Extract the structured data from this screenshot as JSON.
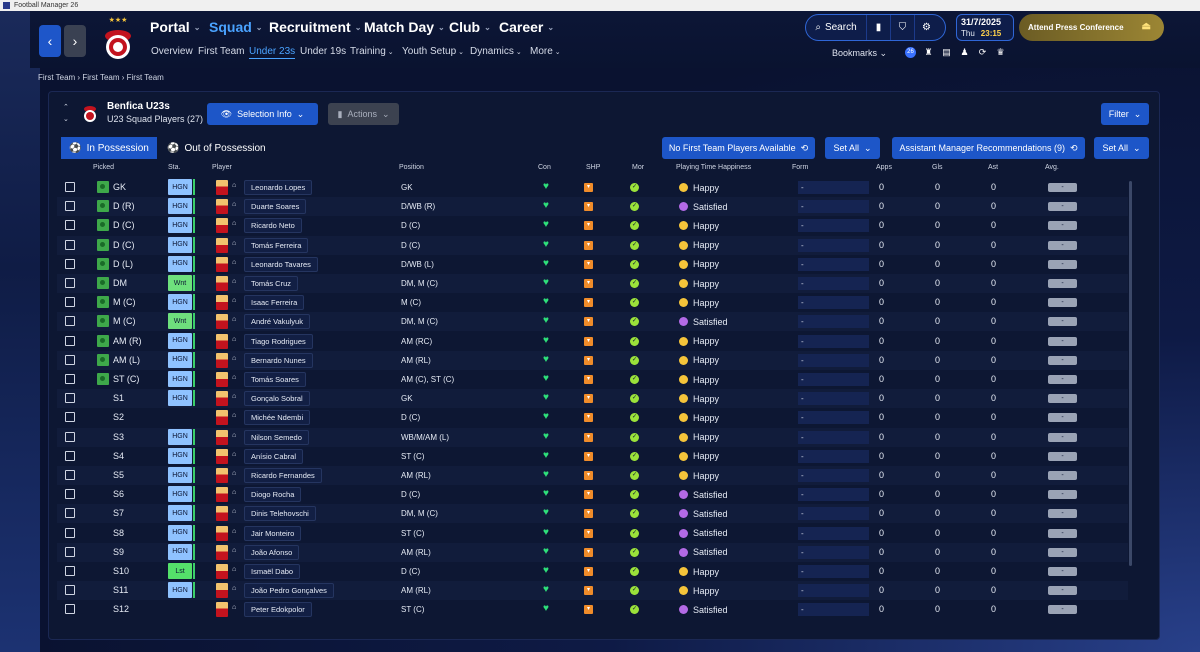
{
  "window": {
    "title": "Football Manager 26"
  },
  "nav": {
    "main": [
      {
        "label": "Portal"
      },
      {
        "label": "Squad"
      },
      {
        "label": "Recruitment"
      },
      {
        "label": "Match Day"
      },
      {
        "label": "Club"
      },
      {
        "label": "Career"
      }
    ],
    "sub": [
      {
        "label": "Overview"
      },
      {
        "label": "First Team"
      },
      {
        "label": "Under 23s"
      },
      {
        "label": "Under 19s"
      },
      {
        "label": "Training"
      },
      {
        "label": "Youth Setup"
      },
      {
        "label": "Dynamics"
      },
      {
        "label": "More"
      }
    ],
    "search_label": "Search",
    "date": "31/7/2025",
    "day": "Thu",
    "time": "23:15",
    "press_label": "Attend Press Conference",
    "bookmarks_label": "Bookmarks",
    "badge": "26"
  },
  "breadcrumb": [
    "First Team",
    "First Team",
    "First Team"
  ],
  "panel": {
    "team": "Benfica U23s",
    "subtitle": "U23 Squad Players (27)",
    "selection_info": "Selection Info",
    "actions": "Actions",
    "filter": "Filter",
    "tab_in": "In Possession",
    "tab_out": "Out of Possession",
    "no_first_team": "No First Team Players Available",
    "set_all": "Set All",
    "assistant": "Assistant Manager Recommendations (9)"
  },
  "columns": {
    "picked": "Picked",
    "sta": "Sta.",
    "player": "Player",
    "position": "Position",
    "con": "Con",
    "shp": "SHP",
    "mor": "Mor",
    "pth": "Playing Time Happiness",
    "form": "Form",
    "apps": "Apps",
    "gls": "Gls",
    "ast": "Ast",
    "avg": "Avg."
  },
  "rows": [
    {
      "picked": "GK",
      "sta": "HGN",
      "name": "Leonardo Lopes",
      "pos": "GK",
      "hap": "Happy",
      "form": "-",
      "apps": "0",
      "gls": "0",
      "ast": "0",
      "avg": "-"
    },
    {
      "picked": "D (R)",
      "sta": "HGN",
      "name": "Duarte Soares",
      "pos": "D/WB (R)",
      "hap": "Satisfied",
      "form": "-",
      "apps": "0",
      "gls": "0",
      "ast": "0",
      "avg": "-"
    },
    {
      "picked": "D (C)",
      "sta": "HGN",
      "name": "Ricardo Neto",
      "pos": "D (C)",
      "hap": "Happy",
      "form": "-",
      "apps": "0",
      "gls": "0",
      "ast": "0",
      "avg": "-"
    },
    {
      "picked": "D (C)",
      "sta": "HGN",
      "name": "Tomás Ferreira",
      "pos": "D (C)",
      "hap": "Happy",
      "form": "-",
      "apps": "0",
      "gls": "0",
      "ast": "0",
      "avg": "-"
    },
    {
      "picked": "D (L)",
      "sta": "HGN",
      "name": "Leonardo Tavares",
      "pos": "D/WB (L)",
      "hap": "Happy",
      "form": "-",
      "apps": "0",
      "gls": "0",
      "ast": "0",
      "avg": "-"
    },
    {
      "picked": "DM",
      "sta": "Wnt",
      "name": "Tomás Cruz",
      "pos": "DM, M (C)",
      "hap": "Happy",
      "form": "-",
      "apps": "0",
      "gls": "0",
      "ast": "0",
      "avg": "-"
    },
    {
      "picked": "M (C)",
      "sta": "HGN",
      "name": "Isaac Ferreira",
      "pos": "M (C)",
      "hap": "Happy",
      "form": "-",
      "apps": "0",
      "gls": "0",
      "ast": "0",
      "avg": "-"
    },
    {
      "picked": "M (C)",
      "sta": "Wnt",
      "name": "André Vakulyuk",
      "pos": "DM, M (C)",
      "hap": "Satisfied",
      "form": "-",
      "apps": "0",
      "gls": "0",
      "ast": "0",
      "avg": "-"
    },
    {
      "picked": "AM (R)",
      "sta": "HGN",
      "name": "Tiago Rodrigues",
      "pos": "AM (RC)",
      "hap": "Happy",
      "form": "-",
      "apps": "0",
      "gls": "0",
      "ast": "0",
      "avg": "-"
    },
    {
      "picked": "AM (L)",
      "sta": "HGN",
      "name": "Bernardo Nunes",
      "pos": "AM (RL)",
      "hap": "Happy",
      "form": "-",
      "apps": "0",
      "gls": "0",
      "ast": "0",
      "avg": "-"
    },
    {
      "picked": "ST (C)",
      "sta": "HGN",
      "name": "Tomás Soares",
      "pos": "AM (C), ST (C)",
      "hap": "Happy",
      "form": "-",
      "apps": "0",
      "gls": "0",
      "ast": "0",
      "avg": "-"
    },
    {
      "picked": "S1",
      "sta": "HGN",
      "name": "Gonçalo Sobral",
      "pos": "GK",
      "hap": "Happy",
      "form": "-",
      "apps": "0",
      "gls": "0",
      "ast": "0",
      "avg": "-"
    },
    {
      "picked": "S2",
      "sta": "",
      "name": "Michée Ndembi",
      "pos": "D (C)",
      "hap": "Happy",
      "form": "-",
      "apps": "0",
      "gls": "0",
      "ast": "0",
      "avg": "-"
    },
    {
      "picked": "S3",
      "sta": "HGN",
      "name": "Nilson Semedo",
      "pos": "WB/M/AM (L)",
      "hap": "Happy",
      "form": "-",
      "apps": "0",
      "gls": "0",
      "ast": "0",
      "avg": "-"
    },
    {
      "picked": "S4",
      "sta": "HGN",
      "name": "Anísio Cabral",
      "pos": "ST (C)",
      "hap": "Happy",
      "form": "-",
      "apps": "0",
      "gls": "0",
      "ast": "0",
      "avg": "-"
    },
    {
      "picked": "S5",
      "sta": "HGN",
      "name": "Ricardo Fernandes",
      "pos": "AM (RL)",
      "hap": "Happy",
      "form": "-",
      "apps": "0",
      "gls": "0",
      "ast": "0",
      "avg": "-"
    },
    {
      "picked": "S6",
      "sta": "HGN",
      "name": "Diogo Rocha",
      "pos": "D (C)",
      "hap": "Satisfied",
      "form": "-",
      "apps": "0",
      "gls": "0",
      "ast": "0",
      "avg": "-"
    },
    {
      "picked": "S7",
      "sta": "HGN",
      "name": "Dinis Telehovschi",
      "pos": "DM, M (C)",
      "hap": "Satisfied",
      "form": "-",
      "apps": "0",
      "gls": "0",
      "ast": "0",
      "avg": "-"
    },
    {
      "picked": "S8",
      "sta": "HGN",
      "name": "Jair Monteiro",
      "pos": "ST (C)",
      "hap": "Satisfied",
      "form": "-",
      "apps": "0",
      "gls": "0",
      "ast": "0",
      "avg": "-"
    },
    {
      "picked": "S9",
      "sta": "HGN",
      "name": "João Afonso",
      "pos": "AM (RL)",
      "hap": "Satisfied",
      "form": "-",
      "apps": "0",
      "gls": "0",
      "ast": "0",
      "avg": "-"
    },
    {
      "picked": "S10",
      "sta": "Lst",
      "name": "Ismaël Dabo",
      "pos": "D (C)",
      "hap": "Happy",
      "form": "-",
      "apps": "0",
      "gls": "0",
      "ast": "0",
      "avg": "-"
    },
    {
      "picked": "S11",
      "sta": "HGN",
      "name": "João Pedro Gonçalves",
      "pos": "AM (RL)",
      "hap": "Happy",
      "form": "-",
      "apps": "0",
      "gls": "0",
      "ast": "0",
      "avg": "-"
    },
    {
      "picked": "S12",
      "sta": "",
      "name": "Peter Edokpolor",
      "pos": "ST (C)",
      "hap": "Satisfied",
      "form": "-",
      "apps": "0",
      "gls": "0",
      "ast": "0",
      "avg": "-"
    }
  ],
  "icons": {
    "back": "chevron-left-icon",
    "forward": "chevron-right-icon",
    "search": "search-icon",
    "settings": "gear-icon"
  },
  "colors": {
    "accent": "#1d56c8",
    "active_nav": "#4aa3ff",
    "press": "#9c8634",
    "con": "#2ee07a",
    "shp": "#f08c2a",
    "mor": "#9be23a",
    "happy": "#f5c43a",
    "satisfied": "#b36ae6"
  }
}
